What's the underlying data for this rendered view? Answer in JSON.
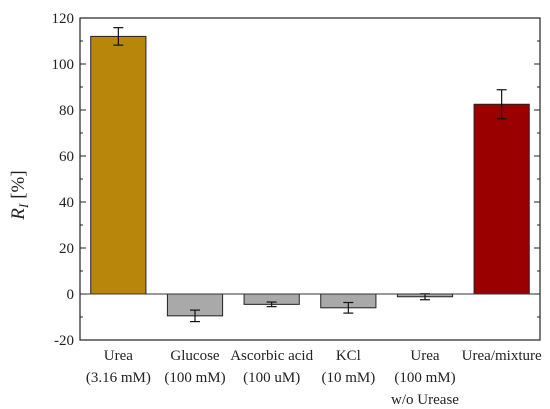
{
  "chart_data": {
    "type": "bar",
    "categories": [
      [
        "Urea",
        "(3.16 mM)"
      ],
      [
        "Glucose",
        "(100 mM)"
      ],
      [
        "Ascorbic acid",
        "(100 uM)"
      ],
      [
        "KCl",
        "(10 mM)"
      ],
      [
        "Urea",
        "(100 mM)",
        "w/o Urease"
      ],
      [
        "Urea/mixture"
      ]
    ],
    "values": [
      112,
      -9.5,
      -4.5,
      -6,
      -1.2,
      82.5
    ],
    "errors": [
      3.8,
      2.5,
      1.0,
      2.3,
      1.3,
      6.3
    ],
    "colors": [
      "#b8860b",
      "#a9a9a9",
      "#a9a9a9",
      "#a9a9a9",
      "#a9a9a9",
      "#9b0000"
    ],
    "ylabel": {
      "symbol": "R",
      "subscript": "I",
      "unit": "[%]"
    },
    "ylim": [
      -20,
      120
    ],
    "yticks": [
      -20,
      0,
      20,
      40,
      60,
      80,
      100,
      120
    ],
    "zero_line": true,
    "grid": false
  }
}
